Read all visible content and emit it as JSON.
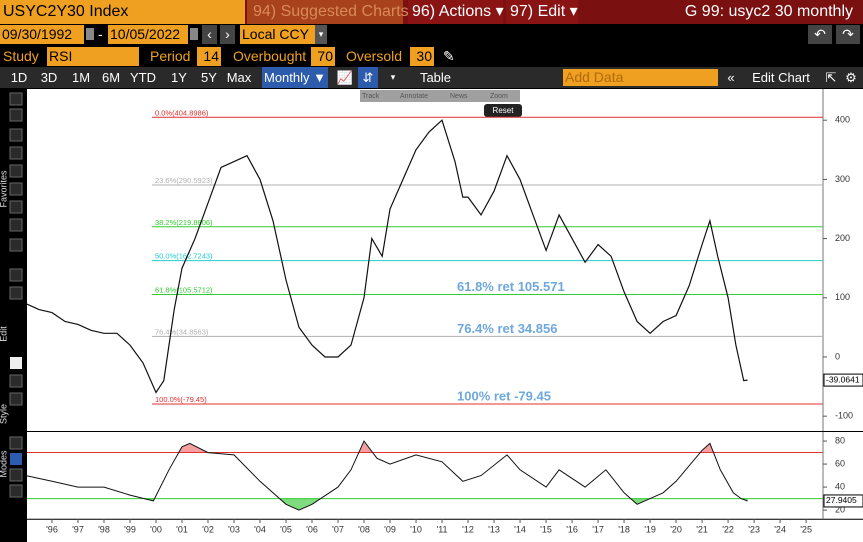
{
  "toolbar": {
    "ticker": "USYC2Y30 Index",
    "suggested": "94) Suggested Charts",
    "actions": "96) Actions ▾",
    "edit": "97) Edit ▾",
    "chart_name": "G 99: usyc2 30 monthly",
    "start_date": "09/30/1992",
    "dash": "-",
    "end_date": "10/05/2022",
    "currency": "Local CCY",
    "study_label": "Study",
    "study": "RSI",
    "period_label": "Period",
    "period": "14",
    "overbought_label": "Overbought",
    "overbought": 70,
    "oversold_label": "Oversold",
    "oversold": 30,
    "ranges": [
      "1D",
      "3D",
      "1M",
      "6M",
      "YTD",
      "1Y",
      "5Y",
      "Max"
    ],
    "frequency": "Monthly ▼",
    "table": "Table",
    "add_data": "Add Data",
    "edit_chart": "Edit Chart",
    "chart_tools": [
      "Track",
      "Annotate",
      "News",
      "Zoom"
    ],
    "reset": "Reset",
    "side_tabs": [
      "Favorites",
      "Edit",
      "Style",
      "Modes"
    ]
  },
  "chart_data": [
    {
      "type": "line",
      "color": "#111111",
      "x": [
        1995.0,
        1995.5,
        1996.0,
        1996.5,
        1997.0,
        1997.5,
        1998.0,
        1998.5,
        1999.0,
        1999.5,
        2000.0,
        2000.3,
        2000.7,
        2001.0,
        2001.5,
        2002.0,
        2002.5,
        2003.0,
        2003.5,
        2004.0,
        2004.5,
        2005.0,
        2005.5,
        2006.0,
        2006.5,
        2007.0,
        2007.5,
        2008.0,
        2008.3,
        2008.7,
        2009.0,
        2009.5,
        2010.0,
        2010.5,
        2011.0,
        2011.5,
        2011.8,
        2012.0,
        2012.5,
        2013.0,
        2013.5,
        2014.0,
        2014.5,
        2015.0,
        2015.5,
        2016.0,
        2016.5,
        2017.0,
        2017.5,
        2018.0,
        2018.5,
        2019.0,
        2019.5,
        2020.0,
        2020.5,
        2021.0,
        2021.3,
        2021.6,
        2022.0,
        2022.3,
        2022.6,
        2022.75
      ],
      "values": [
        90,
        80,
        75,
        60,
        55,
        45,
        40,
        40,
        20,
        -10,
        -60,
        -40,
        80,
        150,
        200,
        260,
        320,
        330,
        340,
        300,
        230,
        130,
        50,
        20,
        0,
        0,
        20,
        100,
        200,
        170,
        250,
        300,
        350,
        380,
        400,
        330,
        270,
        270,
        240,
        280,
        340,
        300,
        240,
        180,
        240,
        200,
        160,
        190,
        170,
        110,
        60,
        40,
        60,
        70,
        120,
        190,
        230,
        170,
        100,
        20,
        -40,
        -39.0641
      ],
      "xlim": [
        1995.04,
        2025.65
      ],
      "xticks": [
        {
          "value": 1996,
          "label": "'96"
        },
        {
          "value": 1997,
          "label": "'97"
        },
        {
          "value": 1998,
          "label": "'98"
        },
        {
          "value": 1999,
          "label": "'99"
        },
        {
          "value": 2000,
          "label": "'00"
        },
        {
          "value": 2001,
          "label": "'01"
        },
        {
          "value": 2002,
          "label": "'02"
        },
        {
          "value": 2003,
          "label": "'03"
        },
        {
          "value": 2004,
          "label": "'04"
        },
        {
          "value": 2005,
          "label": "'05"
        },
        {
          "value": 2006,
          "label": "'06"
        },
        {
          "value": 2007,
          "label": "'07"
        },
        {
          "value": 2008,
          "label": "'08"
        },
        {
          "value": 2009,
          "label": "'09"
        },
        {
          "value": 2010,
          "label": "'10"
        },
        {
          "value": 2011,
          "label": "'11"
        },
        {
          "value": 2012,
          "label": "'12"
        },
        {
          "value": 2013,
          "label": "'13"
        },
        {
          "value": 2014,
          "label": "'14"
        },
        {
          "value": 2015,
          "label": "'15"
        },
        {
          "value": 2016,
          "label": "'16"
        },
        {
          "value": 2017,
          "label": "'17"
        },
        {
          "value": 2018,
          "label": "'18"
        },
        {
          "value": 2019,
          "label": "'19"
        },
        {
          "value": 2020,
          "label": "'20"
        },
        {
          "value": 2021,
          "label": "'21"
        },
        {
          "value": 2022,
          "label": "'22"
        },
        {
          "value": 2023,
          "label": "'23"
        },
        {
          "value": 2024,
          "label": "'24"
        },
        {
          "value": 2025,
          "label": "'25"
        }
      ],
      "ylim": [
        -120,
        451
      ],
      "yticks": [
        -100,
        0,
        100,
        200,
        300,
        400
      ],
      "fib_levels": [
        {
          "value": 404.8986,
          "label": "0.0%(404.8986)",
          "color": "#e03030"
        },
        {
          "value": 290.5923,
          "label": "23.6%(290.5923)",
          "color": "#b0b0b0"
        },
        {
          "value": 219.8806,
          "label": "38.2%(219.8806)",
          "color": "#33cc33"
        },
        {
          "value": 162.7243,
          "label": "50.0%(162.7243)",
          "color": "#22cccc"
        },
        {
          "value": 105.5712,
          "label": "61.8%(105.5712)",
          "color": "#33cc33",
          "annotation": "61.8% ret 105.571"
        },
        {
          "value": 34.8563,
          "label": "76.4%(34.8563)",
          "color": "#b0b0b0",
          "annotation": "76.4% ret 34.856"
        },
        {
          "value": -79.45,
          "label": "100.0%(-79.45)",
          "color": "#e03030",
          "annotation": "100% ret -79.45"
        }
      ]
    },
    {
      "type": "line",
      "color": "#111111",
      "x": [
        1995.0,
        1996.0,
        1997.0,
        1998.0,
        1999.0,
        1999.9,
        2000.5,
        2001.0,
        2001.3,
        2002.0,
        2003.0,
        2004.0,
        2005.0,
        2005.5,
        2006.0,
        2007.0,
        2007.5,
        2008.0,
        2008.5,
        2009.0,
        2010.0,
        2011.0,
        2011.8,
        2012.5,
        2013.5,
        2014.0,
        2015.0,
        2015.5,
        2016.5,
        2017.3,
        2018.0,
        2018.5,
        2019.0,
        2019.5,
        2020.0,
        2021.0,
        2021.3,
        2021.7,
        2022.2,
        2022.5,
        2022.75
      ],
      "values": [
        50,
        45,
        40,
        40,
        33,
        28,
        55,
        75,
        78,
        70,
        68,
        45,
        25,
        20,
        25,
        40,
        55,
        80,
        65,
        60,
        68,
        62,
        45,
        50,
        68,
        55,
        40,
        55,
        40,
        55,
        35,
        25,
        30,
        35,
        45,
        72,
        78,
        55,
        35,
        30,
        27.9405
      ],
      "ylim": [
        14,
        87
      ],
      "yticks": [
        20,
        40,
        60,
        80
      ]
    }
  ]
}
